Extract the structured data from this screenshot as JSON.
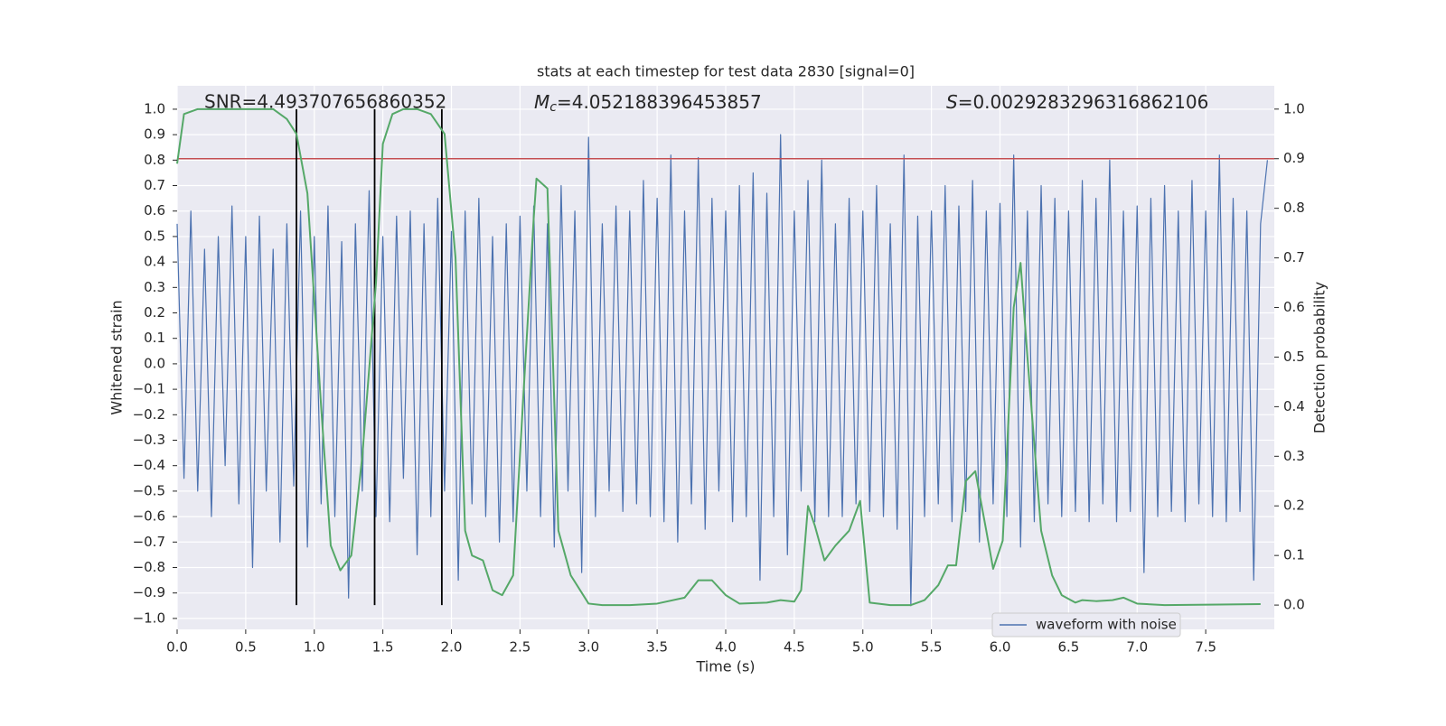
{
  "chart_data": {
    "type": "line",
    "title": "stats at each timestep for test data 2830 [signal=0]",
    "xlabel": "Time (s)",
    "ylabel": "Whitened strain",
    "y2label": "Detection probability",
    "annotations": [
      {
        "text": "SNR=4.493707656860352"
      },
      {
        "symbol": "M",
        "sub": "c",
        "text": "=4.052188396453857"
      },
      {
        "symbol": "S",
        "text": "=0.0029283296316862106"
      }
    ],
    "xlim": [
      0,
      8
    ],
    "ylim": [
      -1.043,
      1.092
    ],
    "y2lim": [
      -0.049,
      1.047
    ],
    "grid": true,
    "legend": "lower right",
    "xticks": [
      {
        "value": 0,
        "label": "0.0"
      },
      {
        "value": 0.5,
        "label": "0.5"
      },
      {
        "value": 1,
        "label": "1.0"
      },
      {
        "value": 1.5,
        "label": "1.5"
      },
      {
        "value": 2,
        "label": "2.0"
      },
      {
        "value": 2.5,
        "label": "2.5"
      },
      {
        "value": 3,
        "label": "3.0"
      },
      {
        "value": 3.5,
        "label": "3.5"
      },
      {
        "value": 4,
        "label": "4.0"
      },
      {
        "value": 4.5,
        "label": "4.5"
      },
      {
        "value": 5,
        "label": "5.0"
      },
      {
        "value": 5.5,
        "label": "5.5"
      },
      {
        "value": 6,
        "label": "6.0"
      },
      {
        "value": 6.5,
        "label": "6.5"
      },
      {
        "value": 7,
        "label": "7.0"
      },
      {
        "value": 7.5,
        "label": "7.5"
      }
    ],
    "yticks": [
      {
        "value": -1,
        "label": "−1.0"
      },
      {
        "value": -0.9,
        "label": "−0.9"
      },
      {
        "value": -0.8,
        "label": "−0.8"
      },
      {
        "value": -0.7,
        "label": "−0.7"
      },
      {
        "value": -0.6,
        "label": "−0.6"
      },
      {
        "value": -0.5,
        "label": "−0.5"
      },
      {
        "value": -0.4,
        "label": "−0.4"
      },
      {
        "value": -0.3,
        "label": "−0.3"
      },
      {
        "value": -0.2,
        "label": "−0.2"
      },
      {
        "value": -0.1,
        "label": "−0.1"
      },
      {
        "value": 0,
        "label": "0.0"
      },
      {
        "value": 0.1,
        "label": "0.1"
      },
      {
        "value": 0.2,
        "label": "0.2"
      },
      {
        "value": 0.3,
        "label": "0.3"
      },
      {
        "value": 0.4,
        "label": "0.4"
      },
      {
        "value": 0.5,
        "label": "0.5"
      },
      {
        "value": 0.6,
        "label": "0.6"
      },
      {
        "value": 0.7,
        "label": "0.7"
      },
      {
        "value": 0.8,
        "label": "0.8"
      },
      {
        "value": 0.9,
        "label": "0.9"
      },
      {
        "value": 1,
        "label": "1.0"
      }
    ],
    "y2ticks": [
      {
        "value": 0,
        "label": "0.0"
      },
      {
        "value": 0.1,
        "label": "0.1"
      },
      {
        "value": 0.2,
        "label": "0.2"
      },
      {
        "value": 0.3,
        "label": "0.3"
      },
      {
        "value": 0.4,
        "label": "0.4"
      },
      {
        "value": 0.5,
        "label": "0.5"
      },
      {
        "value": 0.6,
        "label": "0.6"
      },
      {
        "value": 0.7,
        "label": "0.7"
      },
      {
        "value": 0.8,
        "label": "0.8"
      },
      {
        "value": 0.9,
        "label": "0.9"
      },
      {
        "value": 1,
        "label": "1.0"
      }
    ],
    "threshold_y2": 0.9,
    "threshold_color": "#c44e52",
    "vlines_x": [
      0.87,
      1.44,
      1.93
    ],
    "vline_color": "#000000",
    "series": [
      {
        "name": "waveform with noise",
        "color": "#4c72b0",
        "x": [
          0,
          0.05,
          0.1,
          0.15,
          0.2,
          0.25,
          0.3,
          0.35,
          0.4,
          0.45,
          0.5,
          0.55,
          0.6,
          0.65,
          0.7,
          0.75,
          0.8,
          0.85,
          0.9,
          0.95,
          1,
          1.05,
          1.1,
          1.15,
          1.2,
          1.25,
          1.3,
          1.35,
          1.4,
          1.45,
          1.5,
          1.55,
          1.6,
          1.65,
          1.7,
          1.75,
          1.8,
          1.85,
          1.9,
          1.95,
          2,
          2.05,
          2.1,
          2.15,
          2.2,
          2.25,
          2.3,
          2.35,
          2.4,
          2.45,
          2.5,
          2.55,
          2.6,
          2.65,
          2.7,
          2.75,
          2.8,
          2.85,
          2.9,
          2.95,
          3,
          3.05,
          3.1,
          3.15,
          3.2,
          3.25,
          3.3,
          3.35,
          3.4,
          3.45,
          3.5,
          3.55,
          3.6,
          3.65,
          3.7,
          3.75,
          3.8,
          3.85,
          3.9,
          3.95,
          4,
          4.05,
          4.1,
          4.15,
          4.2,
          4.25,
          4.3,
          4.35,
          4.4,
          4.45,
          4.5,
          4.55,
          4.6,
          4.65,
          4.7,
          4.75,
          4.8,
          4.85,
          4.9,
          4.95,
          5,
          5.05,
          5.1,
          5.15,
          5.2,
          5.25,
          5.3,
          5.35,
          5.4,
          5.45,
          5.5,
          5.55,
          5.6,
          5.65,
          5.7,
          5.75,
          5.8,
          5.85,
          5.9,
          5.95,
          6,
          6.05,
          6.1,
          6.15,
          6.2,
          6.25,
          6.3,
          6.35,
          6.4,
          6.45,
          6.5,
          6.55,
          6.6,
          6.65,
          6.7,
          6.75,
          6.8,
          6.85,
          6.9,
          6.95,
          7,
          7.05,
          7.1,
          7.15,
          7.2,
          7.25,
          7.3,
          7.35,
          7.4,
          7.45,
          7.5,
          7.55,
          7.6,
          7.65,
          7.7,
          7.75,
          7.8,
          7.85,
          7.9,
          7.95
        ],
        "values": [
          0.55,
          -0.45,
          0.6,
          -0.5,
          0.45,
          -0.6,
          0.5,
          -0.4,
          0.62,
          -0.55,
          0.5,
          -0.8,
          0.58,
          -0.5,
          0.45,
          -0.7,
          0.55,
          -0.48,
          0.6,
          -0.72,
          0.5,
          -0.55,
          0.62,
          -0.6,
          0.48,
          -0.92,
          0.55,
          -0.5,
          0.68,
          -0.6,
          0.5,
          -0.62,
          0.58,
          -0.45,
          0.6,
          -0.75,
          0.55,
          -0.6,
          0.65,
          -0.5,
          0.52,
          -0.85,
          0.6,
          -0.55,
          0.65,
          -0.6,
          0.5,
          -0.7,
          0.55,
          -0.62,
          0.58,
          -0.5,
          0.62,
          -0.6,
          0.55,
          -0.72,
          0.7,
          -0.5,
          0.6,
          -0.82,
          0.89,
          -0.6,
          0.55,
          -0.5,
          0.62,
          -0.58,
          0.6,
          -0.55,
          0.72,
          -0.6,
          0.65,
          -0.62,
          0.82,
          -0.7,
          0.6,
          -0.55,
          0.81,
          -0.65,
          0.65,
          -0.5,
          0.6,
          -0.62,
          0.7,
          -0.6,
          0.75,
          -0.85,
          0.67,
          -0.6,
          0.9,
          -0.75,
          0.6,
          -0.5,
          0.72,
          -0.62,
          0.8,
          -0.6,
          0.55,
          -0.6,
          0.65,
          -0.55,
          0.6,
          -0.58,
          0.7,
          -0.6,
          0.55,
          -0.65,
          0.82,
          -0.95,
          0.58,
          -0.6,
          0.6,
          -0.55,
          0.7,
          -0.62,
          0.62,
          -0.58,
          0.72,
          -0.7,
          0.6,
          -0.55,
          0.63,
          -0.6,
          0.82,
          -0.72,
          0.6,
          -0.62,
          0.7,
          -0.55,
          0.65,
          -0.6,
          0.6,
          -0.58,
          0.72,
          -0.62,
          0.65,
          -0.55,
          0.8,
          -0.62,
          0.6,
          -0.58,
          0.62,
          -0.82,
          0.65,
          -0.6,
          0.7,
          -0.58,
          0.6,
          -0.62,
          0.72,
          -0.55,
          0.6,
          -0.6,
          0.82,
          -0.62,
          0.65,
          -0.58,
          0.6,
          -0.85,
          0.55,
          0.8
        ]
      },
      {
        "color": "#55a868",
        "axis": "y2",
        "x": [
          0,
          0.05,
          0.15,
          0.7,
          0.8,
          0.87,
          0.95,
          1.05,
          1.12,
          1.19,
          1.27,
          1.35,
          1.45,
          1.5,
          1.57,
          1.65,
          1.75,
          1.85,
          1.95,
          2.03,
          2.1,
          2.15,
          2.23,
          2.3,
          2.37,
          2.45,
          2.52,
          2.6,
          2.62,
          2.7,
          2.78,
          2.87,
          3,
          3.1,
          3.3,
          3.5,
          3.7,
          3.8,
          3.9,
          4,
          4.1,
          4.3,
          4.4,
          4.5,
          4.55,
          4.6,
          4.65,
          4.72,
          4.8,
          4.9,
          4.98,
          5.05,
          5.2,
          5.35,
          5.45,
          5.55,
          5.62,
          5.68,
          5.75,
          5.82,
          5.9,
          5.95,
          6.02,
          6.1,
          6.15,
          6.2,
          6.3,
          6.38,
          6.45,
          6.55,
          6.6,
          6.7,
          6.82,
          6.9,
          7,
          7.2,
          7.6,
          7.9
        ],
        "values": [
          0.89,
          0.99,
          1.0,
          1.0,
          0.98,
          0.95,
          0.83,
          0.4,
          0.12,
          0.07,
          0.1,
          0.3,
          0.65,
          0.93,
          0.99,
          1.0,
          1.0,
          0.99,
          0.95,
          0.7,
          0.15,
          0.1,
          0.09,
          0.03,
          0.02,
          0.06,
          0.4,
          0.78,
          0.86,
          0.84,
          0.15,
          0.06,
          0.003,
          0.0,
          0.0,
          0.003,
          0.015,
          0.05,
          0.05,
          0.02,
          0.003,
          0.005,
          0.01,
          0.007,
          0.03,
          0.2,
          0.16,
          0.09,
          0.12,
          0.15,
          0.21,
          0.005,
          0.0,
          0.0,
          0.01,
          0.04,
          0.08,
          0.08,
          0.25,
          0.27,
          0.15,
          0.073,
          0.13,
          0.6,
          0.69,
          0.5,
          0.15,
          0.06,
          0.02,
          0.005,
          0.01,
          0.008,
          0.01,
          0.015,
          0.003,
          0.0,
          0.001,
          0.002
        ]
      }
    ]
  }
}
